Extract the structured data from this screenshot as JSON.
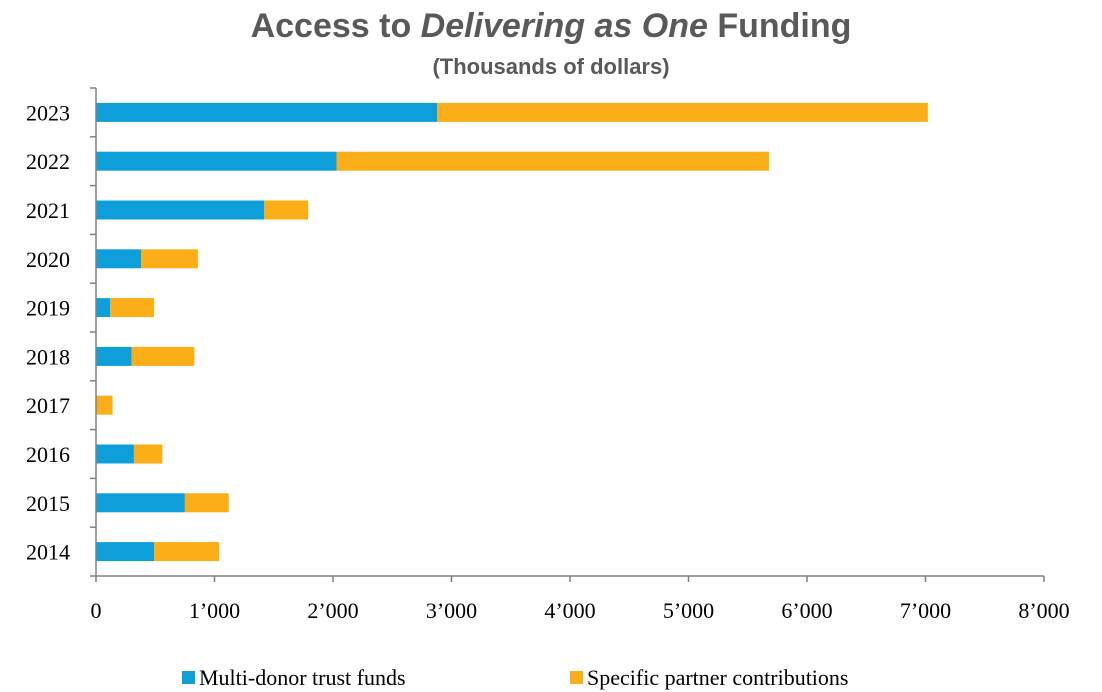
{
  "chart_data": {
    "type": "bar",
    "orientation": "horizontal",
    "stacked": true,
    "title_parts": [
      "Access to ",
      "Delivering as One",
      " Funding"
    ],
    "subtitle": "(Thousands of dollars)",
    "categories": [
      "2023",
      "2022",
      "2021",
      "2020",
      "2019",
      "2018",
      "2017",
      "2016",
      "2015",
      "2014"
    ],
    "series": [
      {
        "name": "Multi-donor trust funds",
        "color": "#0E9FDB",
        "values": [
          2880,
          2030,
          1420,
          380,
          120,
          300,
          0,
          320,
          750,
          490
        ]
      },
      {
        "name": "Specific partner contributions",
        "color": "#FBAE17",
        "values": [
          4140,
          3650,
          370,
          480,
          370,
          530,
          140,
          240,
          370,
          550
        ]
      }
    ],
    "xlim": [
      0,
      8000
    ],
    "xticks": [
      0,
      1000,
      2000,
      3000,
      4000,
      5000,
      6000,
      7000,
      8000
    ],
    "xtick_labels": [
      "0",
      "1’000",
      "2’000",
      "3’000",
      "4’000",
      "5’000",
      "6’000",
      "7’000",
      "8’000"
    ],
    "grid": false,
    "legend_position": "bottom"
  }
}
